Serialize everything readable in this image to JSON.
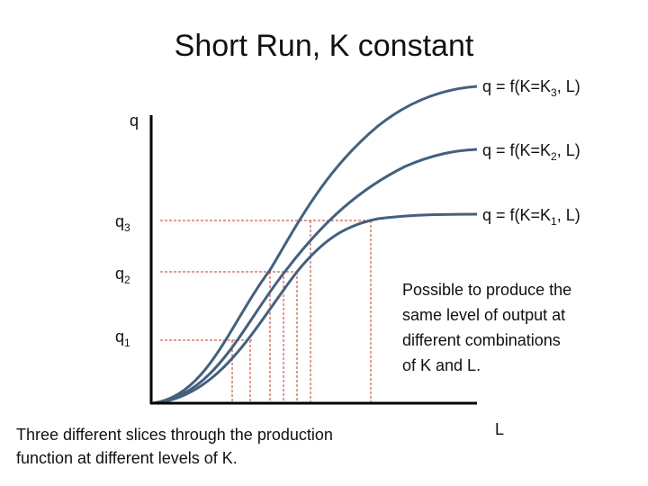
{
  "title": "Short Run, K constant",
  "y_axis_label": "q",
  "x_axis_label": "L",
  "curves": [
    {
      "main": "q = f(K=K",
      "sub": "3",
      "tail": ", L)"
    },
    {
      "main": "q = f(K=K",
      "sub": "2",
      "tail": ", L)"
    },
    {
      "main": "q = f(K=K",
      "sub": "1",
      "tail": ", L)"
    }
  ],
  "levels": [
    {
      "base": "q",
      "sub": "3"
    },
    {
      "base": "q",
      "sub": "2"
    },
    {
      "base": "q",
      "sub": "1"
    }
  ],
  "note": [
    "Possible to produce the",
    "same level of output at",
    "different combinations",
    "of K and L."
  ],
  "caption": [
    "Three different slices through the production",
    "function at different levels of K."
  ]
}
